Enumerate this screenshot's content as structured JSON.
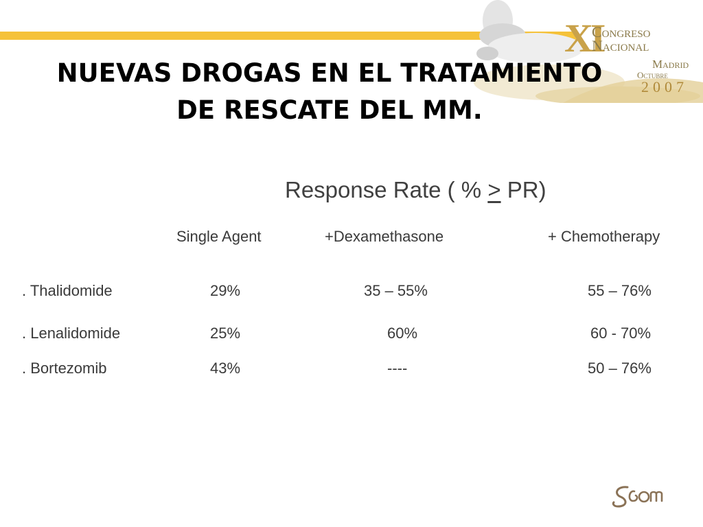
{
  "slide": {
    "title_line1": "NUEVAS DROGAS EN EL TRATAMIENTO",
    "title_line2": "DE RESCATE DEL MM.",
    "congress_logo": {
      "numeral": "XI",
      "line1": "Congreso",
      "line2": "Nacional",
      "city": "Madrid",
      "dates": "Octubre",
      "year": "2007"
    },
    "response_heading": {
      "prefix": "Response Rate ( % ",
      "symbol": ">",
      "suffix": " PR)"
    },
    "columns": [
      "Single Agent",
      "+Dexamethasone",
      "+ Chemotherapy"
    ],
    "rows": [
      {
        "drug": ". Thalidomide",
        "single": "29%",
        "dexa": "35 – 55%",
        "chemo": "55 – 76%"
      },
      {
        "drug": ". Lenalidomide",
        "single": "25%",
        "dexa": "60%",
        "chemo": "60 - 70%"
      },
      {
        "drug": ". Bortezomib",
        "single": "43%",
        "dexa": "----",
        "chemo": "50 – 76%"
      }
    ],
    "colors": {
      "accent_bar": "#f5c23a",
      "logo_gold": "#c9a24a",
      "text": "#3a3a3a"
    }
  }
}
